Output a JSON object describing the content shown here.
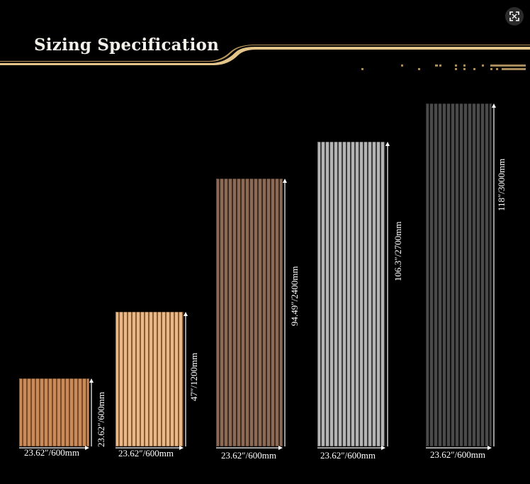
{
  "header": {
    "title": "Sizing Specification"
  },
  "colors": {
    "gold": "#e3c489",
    "gold_dark": "#b8955a",
    "background": "#000000"
  },
  "icons": {
    "expand": "expand-icon"
  },
  "panels": [
    {
      "name": "panel-small",
      "finish": "light oak",
      "color_a": "#c98b5a",
      "color_b": "#7a4a26",
      "width_label": "23.62″/600mm",
      "height_label": "23.62″/600mm"
    },
    {
      "name": "panel-medium",
      "finish": "natural oak",
      "color_a": "#e8b889",
      "color_b": "#8a5a33",
      "width_label": "23.62″/600mm",
      "height_label": "47″/1200mm"
    },
    {
      "name": "panel-walnut",
      "finish": "walnut",
      "color_a": "#8d6a55",
      "color_b": "#3a2a20",
      "width_label": "23.62″/600mm",
      "height_label": "94.49″/2400mm"
    },
    {
      "name": "panel-grey",
      "finish": "grey",
      "color_a": "#b4b4b4",
      "color_b": "#3c3c3c",
      "width_label": "23.62″/600mm",
      "height_label": "106.3″/2700mm"
    },
    {
      "name": "panel-black",
      "finish": "black",
      "color_a": "#4a4a4a",
      "color_b": "#121212",
      "width_label": "23.62″/600mm",
      "height_label": "118″/3000mm"
    }
  ]
}
